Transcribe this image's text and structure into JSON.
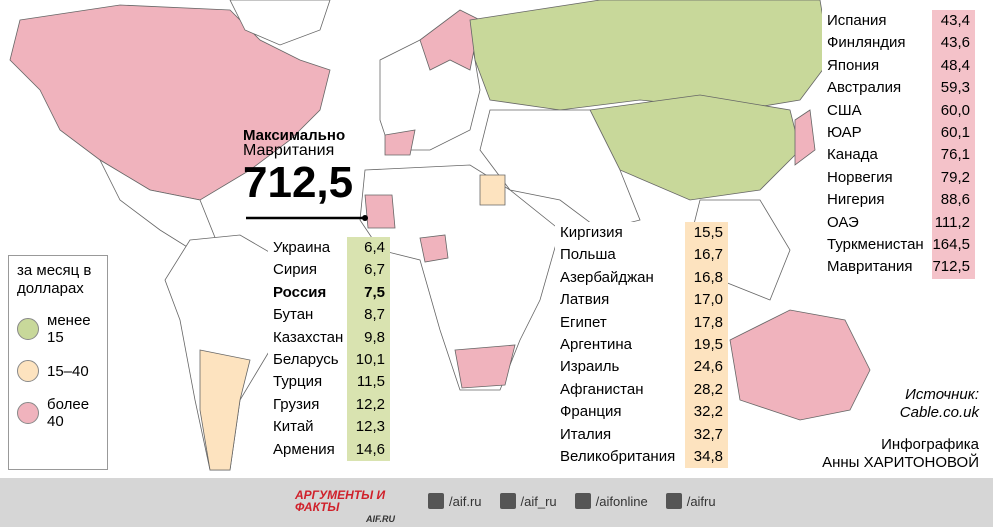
{
  "legend": {
    "title": "за месяц в долларах",
    "items": [
      {
        "label": "менее 15",
        "color": "#c8d89a"
      },
      {
        "label": "15–40",
        "color": "#fde3bf"
      },
      {
        "label": "более 40",
        "color": "#f0b3bd"
      }
    ]
  },
  "highlight": {
    "label": "Максимально",
    "country": "Мавритания",
    "value": "712,5"
  },
  "tables": [
    {
      "color": "#d9e3b0",
      "rows": [
        {
          "name": "Украина",
          "value": "6,4"
        },
        {
          "name": "Сирия",
          "value": "6,7"
        },
        {
          "name": "Россия",
          "value": "7,5",
          "bold": true
        },
        {
          "name": "Бутан",
          "value": "8,7"
        },
        {
          "name": "Казахстан",
          "value": "9,8"
        },
        {
          "name": "Беларусь",
          "value": "10,1"
        },
        {
          "name": "Турция",
          "value": "11,5"
        },
        {
          "name": "Грузия",
          "value": "12,2"
        },
        {
          "name": "Китай",
          "value": "12,3"
        },
        {
          "name": "Армения",
          "value": "14,6"
        }
      ]
    },
    {
      "color": "#fde3bf",
      "rows": [
        {
          "name": "Киргизия",
          "value": "15,5"
        },
        {
          "name": "Польша",
          "value": "16,7"
        },
        {
          "name": "Азербайджан",
          "value": "16,8"
        },
        {
          "name": "Латвия",
          "value": "17,0"
        },
        {
          "name": "Египет",
          "value": "17,8"
        },
        {
          "name": "Аргентина",
          "value": "19,5"
        },
        {
          "name": "Израиль",
          "value": "24,6"
        },
        {
          "name": "Афганистан",
          "value": "28,2"
        },
        {
          "name": "Франция",
          "value": "32,2"
        },
        {
          "name": "Италия",
          "value": "32,7"
        },
        {
          "name": "Великобритания",
          "value": "34,8"
        }
      ]
    },
    {
      "color": "#f4c2c9",
      "rows": [
        {
          "name": "Испания",
          "value": "43,4"
        },
        {
          "name": "Финляндия",
          "value": "43,6"
        },
        {
          "name": "Япония",
          "value": "48,4"
        },
        {
          "name": "Австралия",
          "value": "59,3"
        },
        {
          "name": "США",
          "value": "60,0"
        },
        {
          "name": "ЮАР",
          "value": "60,1"
        },
        {
          "name": "Канада",
          "value": "76,1"
        },
        {
          "name": "Норвегия",
          "value": "79,2"
        },
        {
          "name": "Нигерия",
          "value": "88,6"
        },
        {
          "name": "ОАЭ",
          "value": "111,2"
        },
        {
          "name": "Туркменистан",
          "value": "164,5"
        },
        {
          "name": "Мавритания",
          "value": "712,5"
        }
      ]
    }
  ],
  "source": {
    "label": "Источник:",
    "name": "Cable.co.uk"
  },
  "credit": {
    "label": "Инфографика",
    "author": "Анны ХАРИТОНОВОЙ"
  },
  "footer": {
    "logo": "АРГУМЕНТЫ И ФАКТЫ",
    "site": "AIF.RU",
    "social": [
      "/aif.ru",
      "/aif_ru",
      "/aifonline",
      "/aifru"
    ]
  }
}
